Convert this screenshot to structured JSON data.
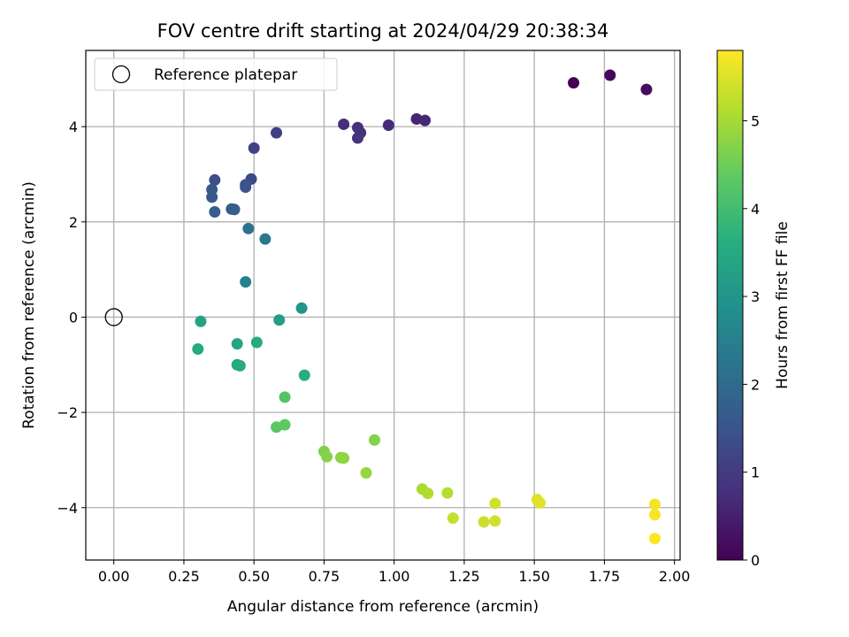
{
  "chart_data": {
    "type": "scatter",
    "title": "FOV centre drift starting at 2024/04/29 20:38:34",
    "xlabel": "Angular distance from reference (arcmin)",
    "ylabel": "Rotation from reference (arcmin)",
    "xlim": [
      -0.1,
      2.02
    ],
    "ylim": [
      -5.1,
      5.6
    ],
    "xticks": [
      0.0,
      0.25,
      0.5,
      0.75,
      1.0,
      1.25,
      1.5,
      1.75,
      2.0
    ],
    "xtick_labels": [
      "0.00",
      "0.25",
      "0.50",
      "0.75",
      "1.00",
      "1.25",
      "1.50",
      "1.75",
      "2.00"
    ],
    "yticks": [
      -4,
      -2,
      0,
      2,
      4
    ],
    "ytick_labels": [
      "−4",
      "−2",
      "0",
      "2",
      "4"
    ],
    "grid": true,
    "legend": {
      "position": "top-left",
      "entries": [
        {
          "label": "Reference platepar",
          "marker": "open-circle",
          "x": 0.0,
          "y": 0.0
        }
      ]
    },
    "colorbar": {
      "label": "Hours from first FF file",
      "colormap": "viridis",
      "range": [
        0,
        5.8
      ],
      "ticks": [
        0,
        1,
        2,
        3,
        4,
        5
      ],
      "tick_labels": [
        "0",
        "1",
        "2",
        "3",
        "4",
        "5"
      ]
    },
    "points": [
      {
        "x": 1.64,
        "y": 4.92,
        "c": 0.0
      },
      {
        "x": 1.77,
        "y": 5.08,
        "c": 0.1
      },
      {
        "x": 1.9,
        "y": 4.78,
        "c": 0.2
      },
      {
        "x": 1.08,
        "y": 4.16,
        "c": 0.6
      },
      {
        "x": 1.11,
        "y": 4.13,
        "c": 0.65
      },
      {
        "x": 0.98,
        "y": 4.03,
        "c": 0.7
      },
      {
        "x": 0.82,
        "y": 4.05,
        "c": 0.75
      },
      {
        "x": 0.87,
        "y": 3.98,
        "c": 0.8
      },
      {
        "x": 0.88,
        "y": 3.87,
        "c": 0.85
      },
      {
        "x": 0.87,
        "y": 3.76,
        "c": 0.9
      },
      {
        "x": 0.58,
        "y": 3.87,
        "c": 1.05
      },
      {
        "x": 0.5,
        "y": 3.55,
        "c": 1.1
      },
      {
        "x": 0.49,
        "y": 2.9,
        "c": 1.3
      },
      {
        "x": 0.36,
        "y": 2.88,
        "c": 1.4
      },
      {
        "x": 0.47,
        "y": 2.78,
        "c": 1.45
      },
      {
        "x": 0.47,
        "y": 2.73,
        "c": 1.5
      },
      {
        "x": 0.35,
        "y": 2.68,
        "c": 1.55
      },
      {
        "x": 0.35,
        "y": 2.52,
        "c": 1.6
      },
      {
        "x": 0.42,
        "y": 2.27,
        "c": 1.65
      },
      {
        "x": 0.43,
        "y": 2.26,
        "c": 1.7
      },
      {
        "x": 0.36,
        "y": 2.21,
        "c": 1.75
      },
      {
        "x": 0.48,
        "y": 1.86,
        "c": 2.2
      },
      {
        "x": 0.54,
        "y": 1.64,
        "c": 2.3
      },
      {
        "x": 0.47,
        "y": 0.74,
        "c": 2.5
      },
      {
        "x": 0.67,
        "y": 0.19,
        "c": 3.0
      },
      {
        "x": 0.31,
        "y": -0.09,
        "c": 3.3
      },
      {
        "x": 0.59,
        "y": -0.06,
        "c": 3.2
      },
      {
        "x": 0.3,
        "y": -0.67,
        "c": 3.5
      },
      {
        "x": 0.44,
        "y": -0.56,
        "c": 3.4
      },
      {
        "x": 0.51,
        "y": -0.53,
        "c": 3.5
      },
      {
        "x": 0.44,
        "y": -1.0,
        "c": 3.5
      },
      {
        "x": 0.45,
        "y": -1.02,
        "c": 3.55
      },
      {
        "x": 0.68,
        "y": -1.22,
        "c": 3.6
      },
      {
        "x": 0.61,
        "y": -1.68,
        "c": 4.2
      },
      {
        "x": 0.58,
        "y": -2.31,
        "c": 4.3
      },
      {
        "x": 0.61,
        "y": -2.26,
        "c": 4.35
      },
      {
        "x": 0.75,
        "y": -2.82,
        "c": 4.65
      },
      {
        "x": 0.76,
        "y": -2.93,
        "c": 4.7
      },
      {
        "x": 0.81,
        "y": -2.95,
        "c": 4.75
      },
      {
        "x": 0.82,
        "y": -2.96,
        "c": 4.8
      },
      {
        "x": 0.93,
        "y": -2.58,
        "c": 4.7
      },
      {
        "x": 0.9,
        "y": -3.27,
        "c": 4.85
      },
      {
        "x": 1.1,
        "y": -3.61,
        "c": 5.05
      },
      {
        "x": 1.12,
        "y": -3.7,
        "c": 5.1
      },
      {
        "x": 1.19,
        "y": -3.69,
        "c": 5.15
      },
      {
        "x": 1.21,
        "y": -4.22,
        "c": 5.3
      },
      {
        "x": 1.32,
        "y": -4.3,
        "c": 5.35
      },
      {
        "x": 1.36,
        "y": -4.28,
        "c": 5.4
      },
      {
        "x": 1.36,
        "y": -3.91,
        "c": 5.4
      },
      {
        "x": 1.51,
        "y": -3.83,
        "c": 5.5
      },
      {
        "x": 1.52,
        "y": -3.9,
        "c": 5.55
      },
      {
        "x": 1.93,
        "y": -3.93,
        "c": 5.7
      },
      {
        "x": 1.93,
        "y": -4.15,
        "c": 5.75
      },
      {
        "x": 1.93,
        "y": -4.65,
        "c": 5.8
      }
    ]
  }
}
